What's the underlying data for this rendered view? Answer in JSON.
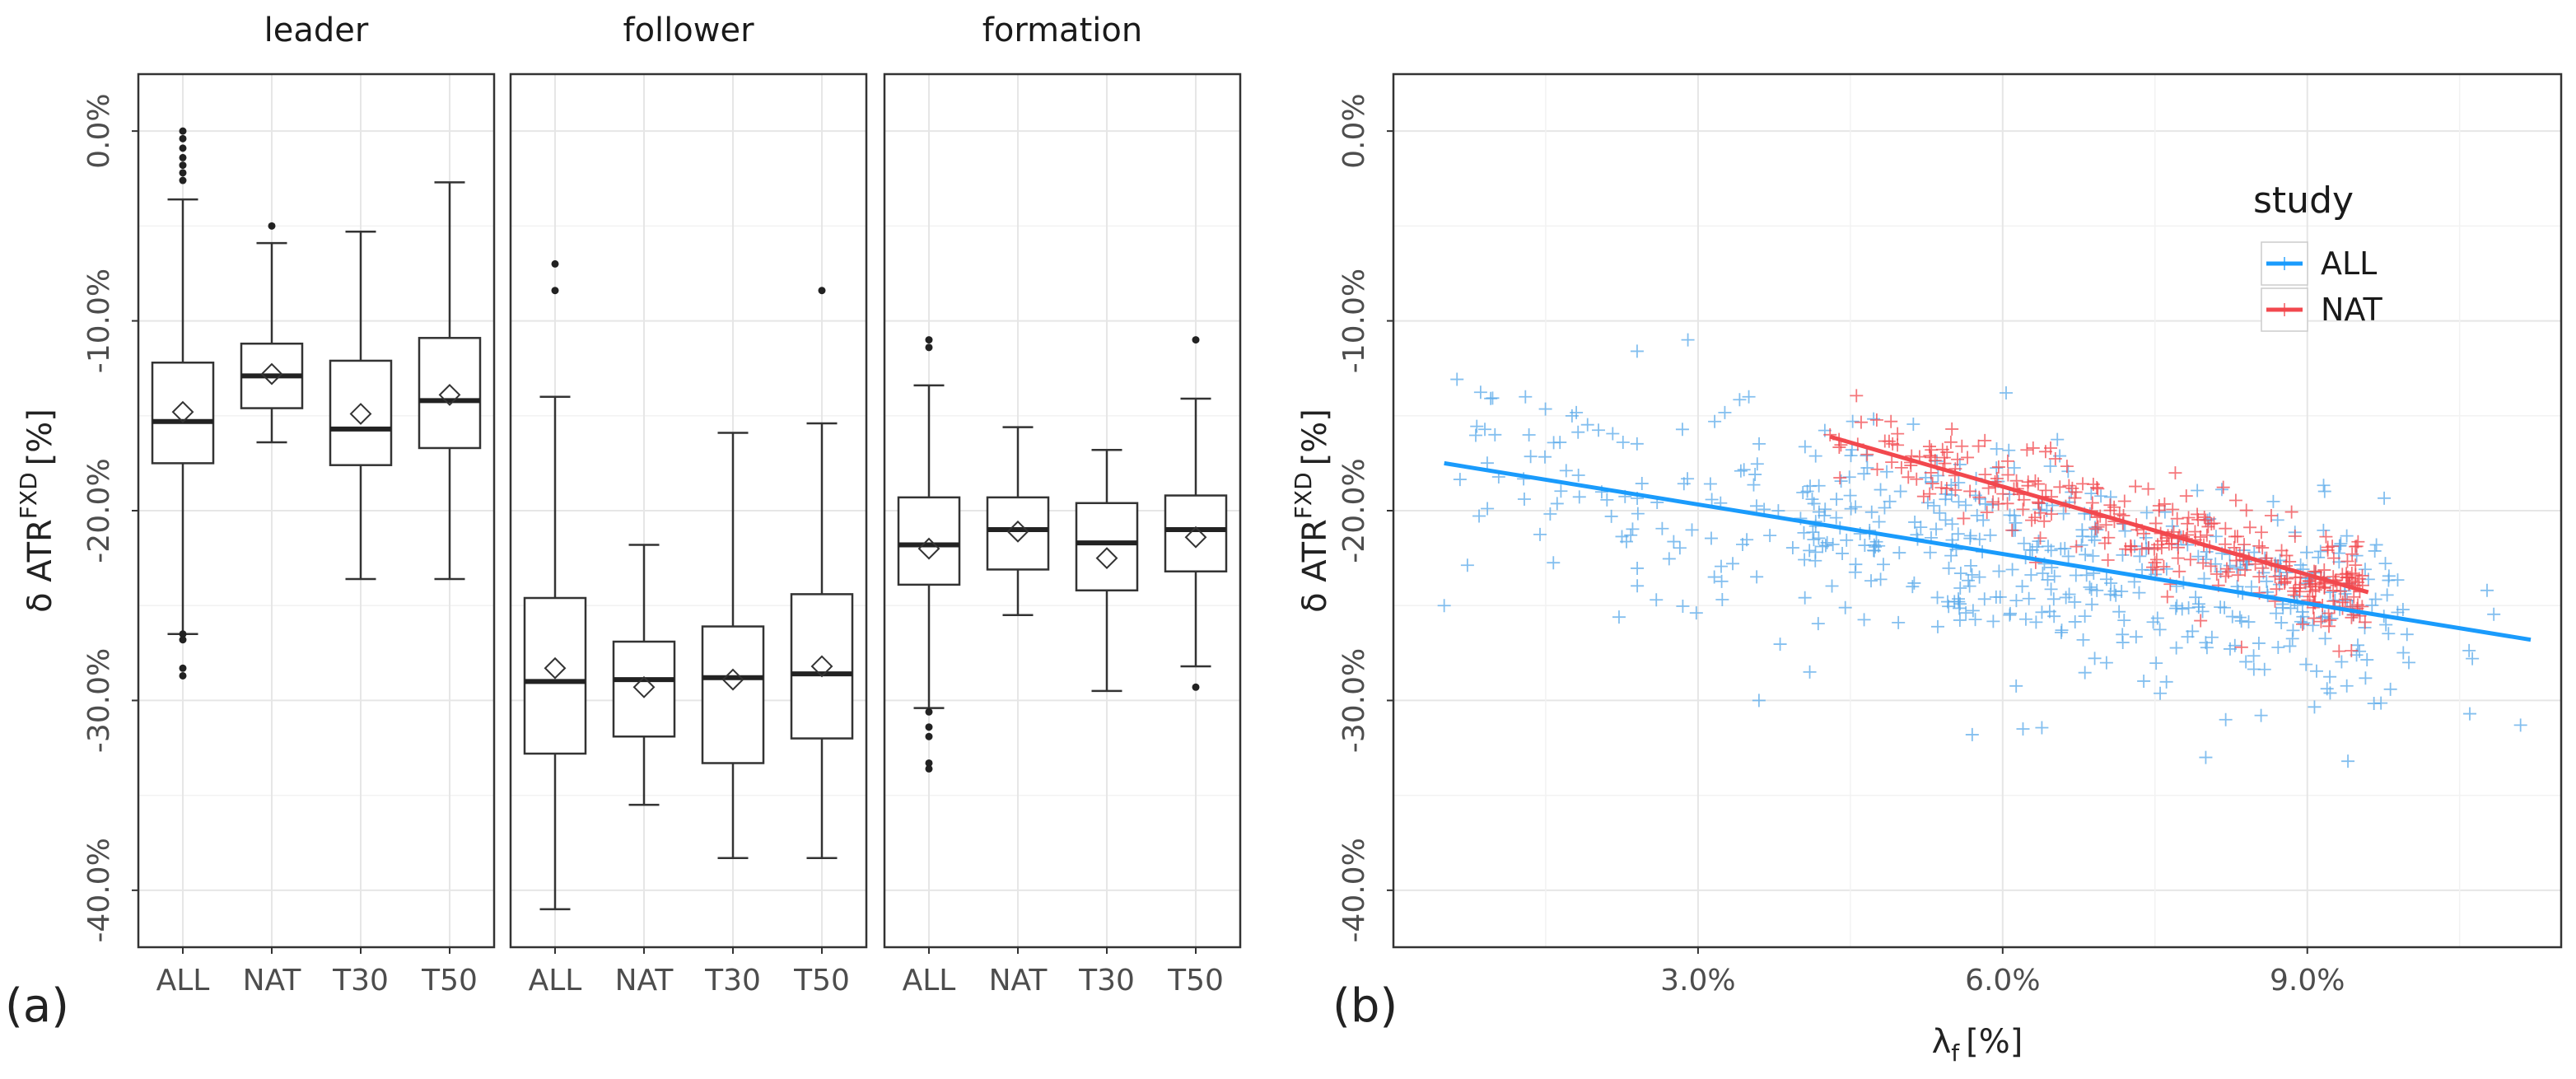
{
  "figure": {
    "panel_a_tag": "(a)",
    "panel_b_tag": "(b)"
  },
  "chart_data": [
    {
      "type": "boxplot",
      "name": "panel-a",
      "ylabel": "δ ATR^FXD [%]",
      "ylabel_main": "δ ATR",
      "ylabel_sup": "FXD",
      "ylabel_unit": "[%]",
      "ylim": [
        -43,
        3
      ],
      "yticks": [
        0,
        -10,
        -20,
        -30,
        -40
      ],
      "ytick_labels": [
        "0.0%",
        "-10.0%",
        "-20.0%",
        "-30.0%",
        "-40.0%"
      ],
      "grid": true,
      "categories": [
        "ALL",
        "NAT",
        "T30",
        "T50"
      ],
      "facets": [
        {
          "label": "leader",
          "boxes": [
            {
              "category": "ALL",
              "q1": -17.5,
              "median": -15.3,
              "q3": -12.2,
              "whisker_low": -26.5,
              "whisker_high": -3.6,
              "mean": -14.8,
              "outliers": [
                0.0,
                -0.4,
                -0.9,
                -1.4,
                -1.8,
                -2.2,
                -2.6,
                -26.5,
                -26.8,
                -28.3,
                -28.7
              ]
            },
            {
              "category": "NAT",
              "q1": -14.6,
              "median": -12.9,
              "q3": -11.2,
              "whisker_low": -16.4,
              "whisker_high": -5.9,
              "mean": -12.8,
              "outliers": [
                -5.0
              ]
            },
            {
              "category": "T30",
              "q1": -17.6,
              "median": -15.7,
              "q3": -12.1,
              "whisker_low": -23.6,
              "whisker_high": -5.3,
              "mean": -14.9,
              "outliers": []
            },
            {
              "category": "T50",
              "q1": -16.7,
              "median": -14.2,
              "q3": -10.9,
              "whisker_low": -23.6,
              "whisker_high": -2.7,
              "mean": -13.9,
              "outliers": []
            }
          ]
        },
        {
          "label": "follower",
          "boxes": [
            {
              "category": "ALL",
              "q1": -32.8,
              "median": -29.0,
              "q3": -24.6,
              "whisker_low": -41.0,
              "whisker_high": -14.0,
              "mean": -28.3,
              "outliers": [
                -7.0,
                -8.4
              ]
            },
            {
              "category": "NAT",
              "q1": -31.9,
              "median": -28.9,
              "q3": -26.9,
              "whisker_low": -35.5,
              "whisker_high": -21.8,
              "mean": -29.3,
              "outliers": []
            },
            {
              "category": "T30",
              "q1": -33.3,
              "median": -28.8,
              "q3": -26.1,
              "whisker_low": -38.3,
              "whisker_high": -15.9,
              "mean": -28.9,
              "outliers": []
            },
            {
              "category": "T50",
              "q1": -32.0,
              "median": -28.6,
              "q3": -24.4,
              "whisker_low": -38.3,
              "whisker_high": -15.4,
              "mean": -28.2,
              "outliers": [
                -8.4
              ]
            }
          ]
        },
        {
          "label": "formation",
          "boxes": [
            {
              "category": "ALL",
              "q1": -23.9,
              "median": -21.8,
              "q3": -19.3,
              "whisker_low": -30.4,
              "whisker_high": -13.4,
              "mean": -22.0,
              "outliers": [
                -11.0,
                -11.4,
                -30.6,
                -31.4,
                -31.9,
                -33.3,
                -33.6
              ]
            },
            {
              "category": "NAT",
              "q1": -23.1,
              "median": -21.0,
              "q3": -19.3,
              "whisker_low": -25.5,
              "whisker_high": -15.6,
              "mean": -21.1,
              "outliers": []
            },
            {
              "category": "T30",
              "q1": -24.2,
              "median": -21.7,
              "q3": -19.6,
              "whisker_low": -29.5,
              "whisker_high": -16.8,
              "mean": -22.5,
              "outliers": []
            },
            {
              "category": "T50",
              "q1": -23.2,
              "median": -21.0,
              "q3": -19.2,
              "whisker_low": -28.2,
              "whisker_high": -14.1,
              "mean": -21.4,
              "outliers": [
                -11.0,
                -29.3
              ]
            }
          ]
        }
      ]
    },
    {
      "type": "scatter",
      "name": "panel-b",
      "xlabel": "λf [%]",
      "xlabel_main": "λ",
      "xlabel_sub": "f",
      "xlabel_unit": "[%]",
      "ylabel": "δ ATR^FXD [%]",
      "ylabel_main": "δ ATR",
      "ylabel_sup": "FXD",
      "ylabel_unit": "[%]",
      "xlim": [
        0.0,
        11.5
      ],
      "ylim": [
        -43,
        3
      ],
      "xticks": [
        3,
        6,
        9
      ],
      "xtick_labels": [
        "3.0%",
        "6.0%",
        "9.0%"
      ],
      "yticks": [
        0,
        -10,
        -20,
        -30,
        -40
      ],
      "ytick_labels": [
        "0.0%",
        "-10.0%",
        "-20.0%",
        "-30.0%",
        "-40.0%"
      ],
      "grid": true,
      "legend": {
        "title": "study",
        "position": "top-right",
        "entries": [
          {
            "label": "ALL",
            "color": "#1a9bfc"
          },
          {
            "label": "NAT",
            "color": "#f2484e"
          }
        ]
      },
      "series": [
        {
          "name": "ALL",
          "color": "#5aa9ea",
          "marker": "+",
          "x_range": [
            0.5,
            11.2
          ],
          "fit": {
            "x": [
              0.5,
              11.2
            ],
            "y": [
              -17.5,
              -26.8
            ]
          },
          "points_sample": [
            [
              0.5,
              -25.0
            ],
            [
              1.0,
              -16.0
            ],
            [
              1.3,
              -14.0
            ],
            [
              2.4,
              -11.6
            ],
            [
              2.9,
              -11.0
            ],
            [
              3.5,
              -14.0
            ],
            [
              3.6,
              -30.0
            ],
            [
              4.1,
              -28.5
            ],
            [
              5.7,
              -31.8
            ],
            [
              6.2,
              -31.5
            ],
            [
              8.0,
              -33.0
            ],
            [
              9.4,
              -33.2
            ],
            [
              10.0,
              -28.0
            ],
            [
              10.6,
              -30.7
            ],
            [
              11.1,
              -31.3
            ]
          ],
          "notes": "~500 points densely clustered around the fit line, spread roughly ±5%"
        },
        {
          "name": "NAT",
          "color": "#f2484e",
          "marker": "+",
          "x_range": [
            4.3,
            9.6
          ],
          "fit": {
            "x": [
              4.3,
              9.6
            ],
            "y": [
              -16.1,
              -24.3
            ]
          },
          "points_sample": [
            [
              4.3,
              -16.0
            ],
            [
              4.9,
              -15.3
            ],
            [
              5.5,
              -15.7
            ],
            [
              6.3,
              -16.7
            ],
            [
              7.2,
              -19.5
            ],
            [
              8.0,
              -20.5
            ],
            [
              8.6,
              -22.5
            ],
            [
              9.4,
              -23.5
            ]
          ],
          "notes": "~300 points tightly clustered around the fit line, spread roughly ±3%"
        }
      ]
    }
  ]
}
